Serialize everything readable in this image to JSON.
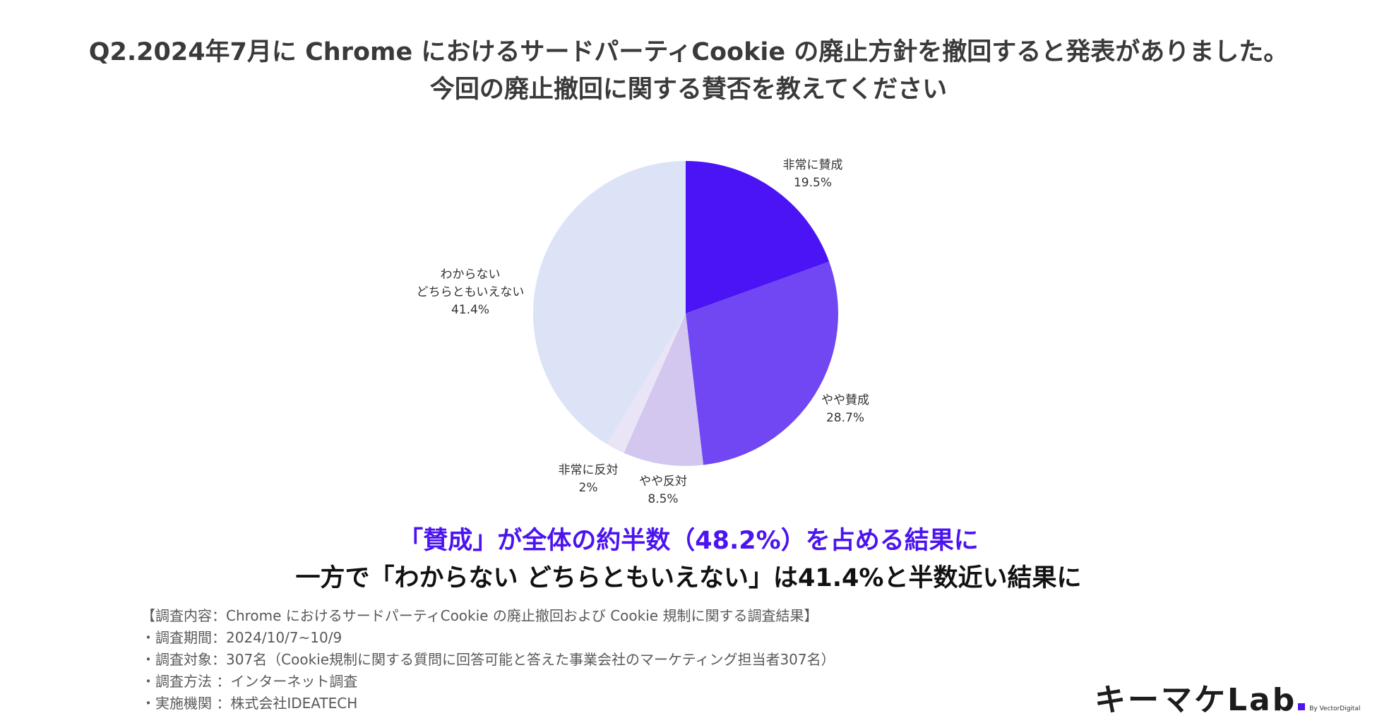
{
  "title": {
    "line1": "Q2.2024年7月に Chrome におけるサードパーティCookie の廃止方針を撤回すると発表がありました。",
    "line2": "今回の廃止撤回に関する賛否を教えてください"
  },
  "chart_data": {
    "type": "pie",
    "start_angle": "12 o'clock",
    "direction": "clockwise",
    "slices": [
      {
        "label": "非常に賛成",
        "value": 19.5,
        "value_label": "19.5%",
        "color": "#4b14f5"
      },
      {
        "label": "やや賛成",
        "value": 28.7,
        "value_label": "28.7%",
        "color": "#7047f3"
      },
      {
        "label": "やや反対",
        "value": 8.5,
        "value_label": "8.5%",
        "color": "#d3c7ef"
      },
      {
        "label": "非常に反対",
        "value": 2,
        "value_label": "2%",
        "color": "#e9e4f6"
      },
      {
        "label": "わからない\nどちらともいえない",
        "value": 41.4,
        "value_label": "41.4%",
        "color": "#dde3f7"
      }
    ]
  },
  "headline": {
    "line1": "「賛成」が全体の約半数（48.2%）を占める結果に",
    "line2": "一方で「わからない どちらともいえない」は41.4%と半数近い結果に"
  },
  "notes": [
    "【調査内容：Chrome におけるサードパーティCookie の廃止撤回および Cookie 規制に関する調査結果】",
    "・調査期間：2024/10/7~10/9",
    "・調査対象：307名（Cookie規制に関する質問に回答可能と答えた事業会社のマーケティング担当者307名）",
    "・調査方法 ：インターネット調査",
    "・実施機関 ：株式会社IDEATECH"
  ],
  "logo": {
    "text": "キーマケLab",
    "sub": "By VectorDigital"
  }
}
